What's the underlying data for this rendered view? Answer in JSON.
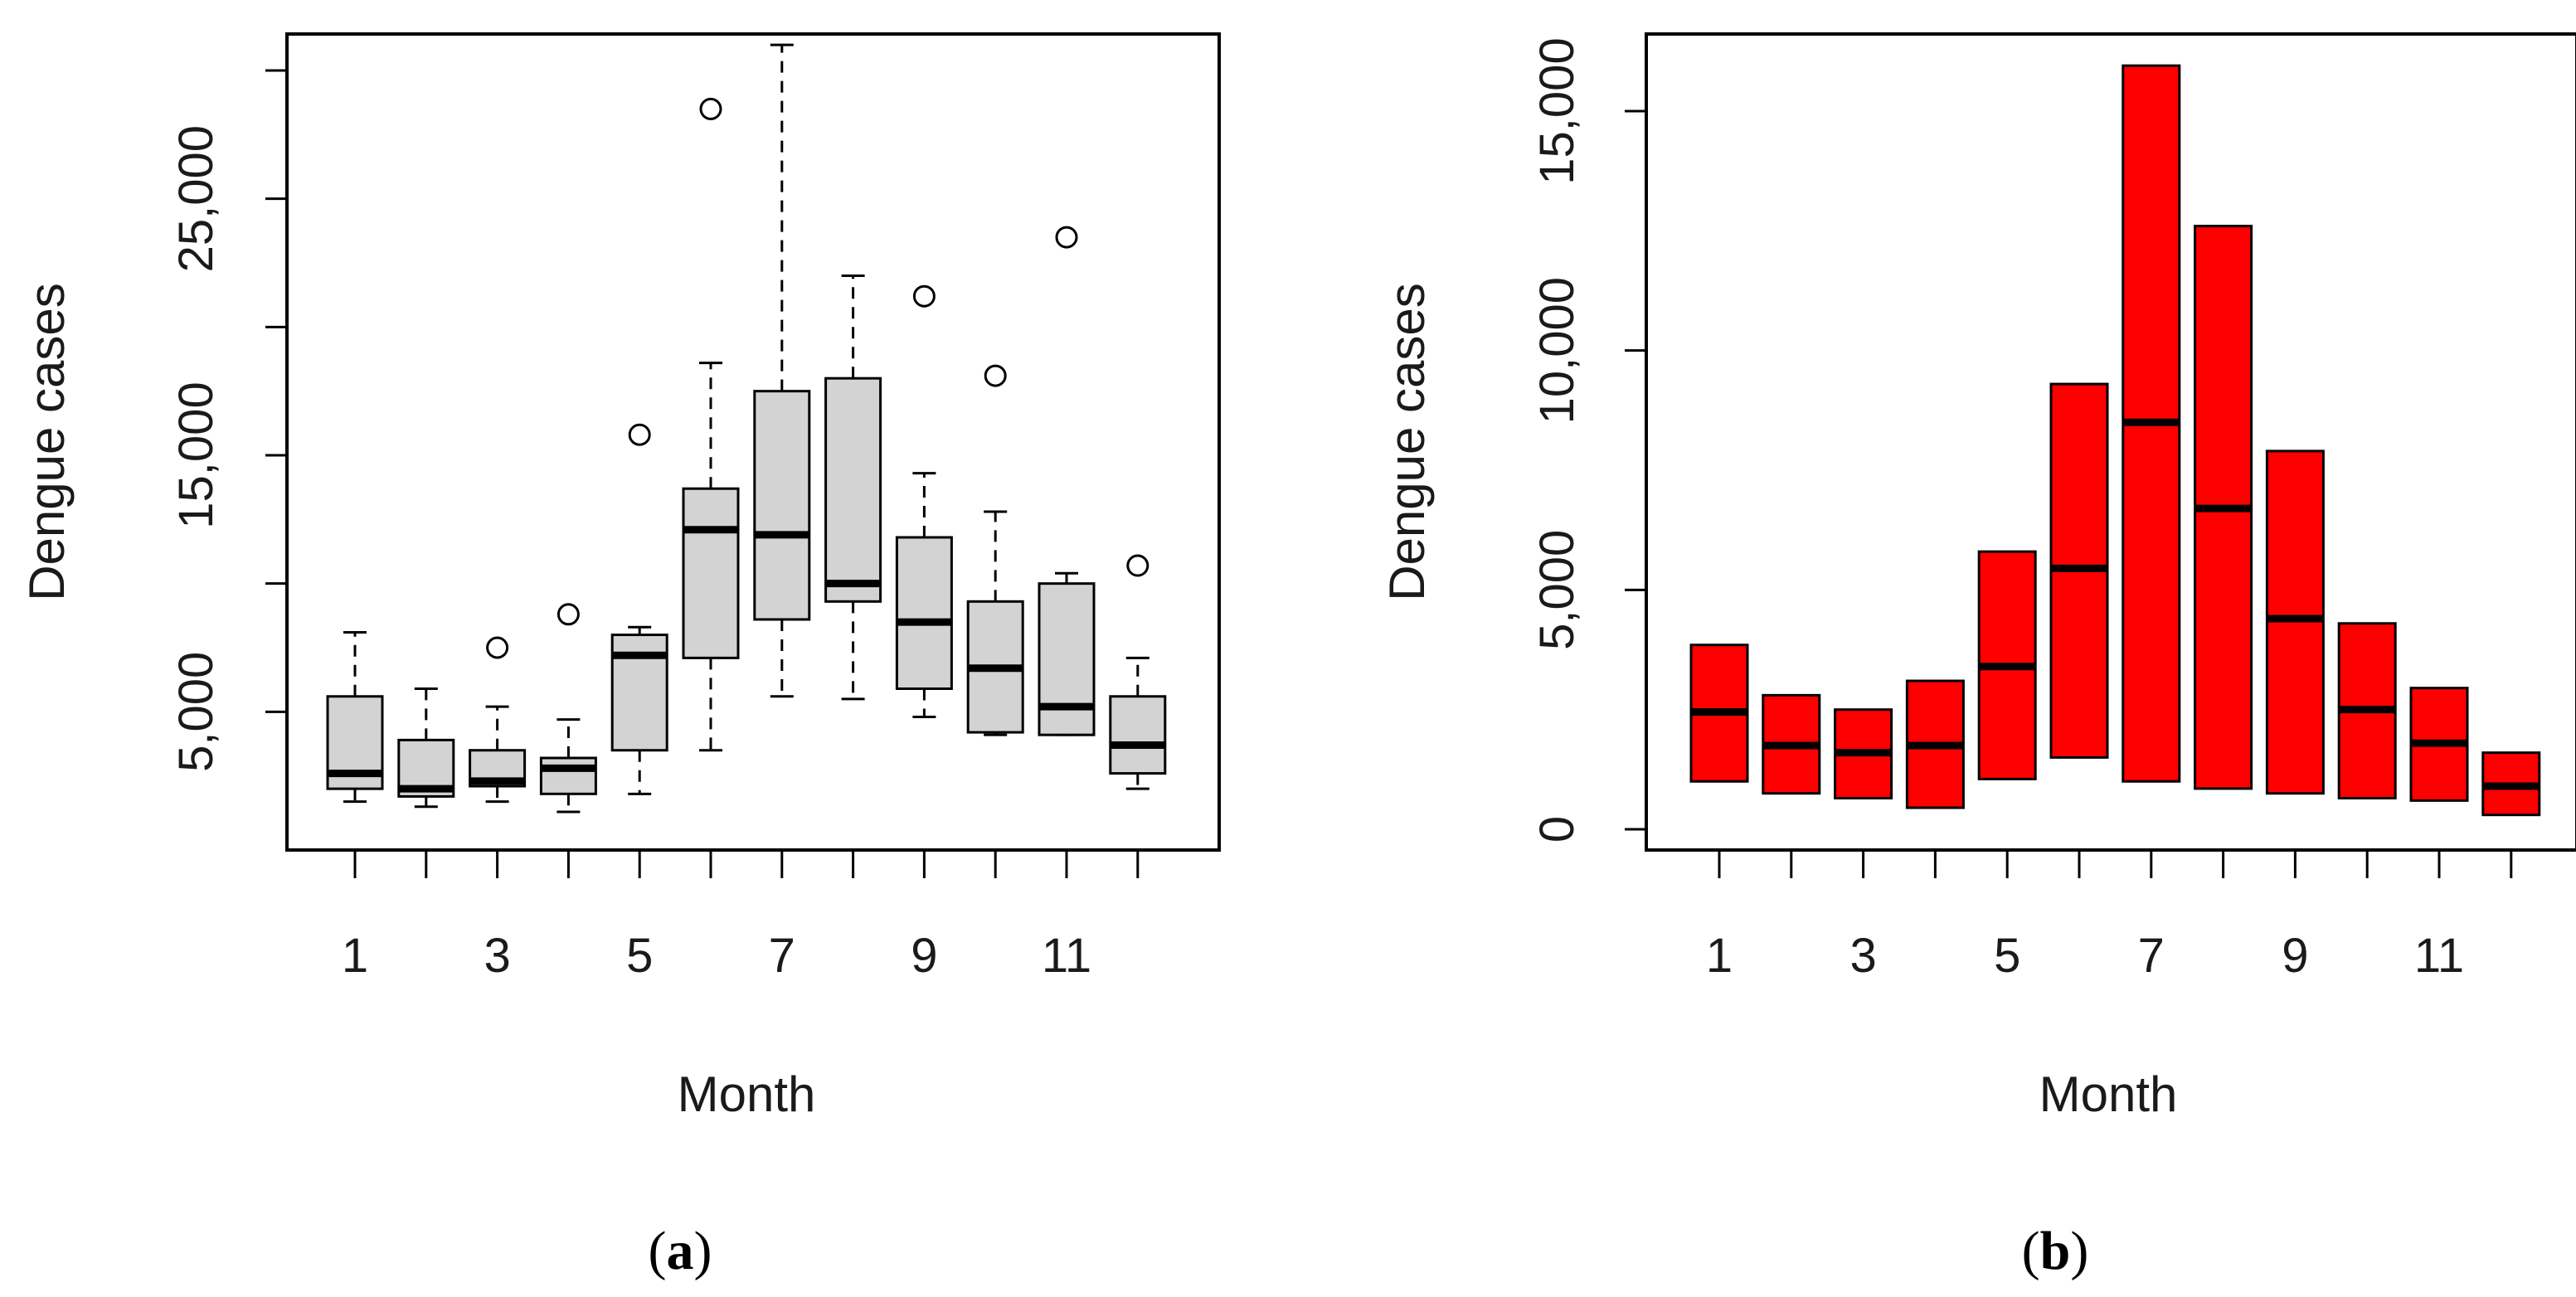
{
  "chart_data": [
    {
      "type": "boxplot",
      "panel_label": "a",
      "xlabel": "Month",
      "ylabel": "Dengue cases",
      "xtick_labels": [
        "1",
        "3",
        "5",
        "7",
        "9",
        "11"
      ],
      "ytick_labels": [
        "5,000",
        "15,000",
        "25,000"
      ],
      "yticks": [
        5000,
        10000,
        15000,
        20000,
        25000,
        30000
      ],
      "xlim": [
        0.5,
        12.5
      ],
      "ylim": [
        0,
        32000
      ],
      "fill_color": "#d3d3d3",
      "series": [
        {
          "month": 1,
          "whisker_low": 1500,
          "q1": 2000,
          "median": 2600,
          "q3": 5600,
          "whisker_high": 8100,
          "outliers": []
        },
        {
          "month": 2,
          "whisker_low": 1300,
          "q1": 1700,
          "median": 2000,
          "q3": 3900,
          "whisker_high": 5900,
          "outliers": []
        },
        {
          "month": 3,
          "whisker_low": 1500,
          "q1": 2100,
          "median": 2300,
          "q3": 3500,
          "whisker_high": 5200,
          "outliers": [
            7500
          ]
        },
        {
          "month": 4,
          "whisker_low": 1100,
          "q1": 1800,
          "median": 2800,
          "q3": 3200,
          "whisker_high": 4700,
          "outliers": [
            8800
          ]
        },
        {
          "month": 5,
          "whisker_low": 1800,
          "q1": 3500,
          "median": 7200,
          "q3": 8000,
          "whisker_high": 8300,
          "outliers": [
            15800
          ]
        },
        {
          "month": 6,
          "whisker_low": 3500,
          "q1": 7100,
          "median": 12100,
          "q3": 13700,
          "whisker_high": 18600,
          "outliers": [
            28500
          ]
        },
        {
          "month": 7,
          "whisker_low": 5600,
          "q1": 8600,
          "median": 11900,
          "q3": 17500,
          "whisker_high": 31000,
          "outliers": []
        },
        {
          "month": 8,
          "whisker_low": 5500,
          "q1": 9300,
          "median": 10000,
          "q3": 18000,
          "whisker_high": 22000,
          "outliers": []
        },
        {
          "month": 9,
          "whisker_low": 4800,
          "q1": 5900,
          "median": 8500,
          "q3": 11800,
          "whisker_high": 14300,
          "outliers": [
            21200
          ]
        },
        {
          "month": 10,
          "whisker_low": 4100,
          "q1": 4200,
          "median": 6700,
          "q3": 9300,
          "whisker_high": 12800,
          "outliers": [
            18100
          ]
        },
        {
          "month": 11,
          "whisker_low": 4100,
          "q1": 4100,
          "median": 5200,
          "q3": 10000,
          "whisker_high": 10400,
          "outliers": [
            23500
          ]
        },
        {
          "month": 12,
          "whisker_low": 2000,
          "q1": 2600,
          "median": 3700,
          "q3": 5600,
          "whisker_high": 7100,
          "outliers": [
            10700
          ]
        }
      ]
    },
    {
      "type": "floating-bar",
      "panel_label": "b",
      "xlabel": "Month",
      "ylabel": "Dengue cases",
      "xtick_labels": [
        "1",
        "3",
        "5",
        "7",
        "9",
        "11"
      ],
      "ytick_labels": [
        "0",
        "5,000",
        "10,000",
        "15,000"
      ],
      "yticks": [
        0,
        5000,
        10000,
        15000
      ],
      "xlim": [
        0.5,
        12.5
      ],
      "ylim": [
        0,
        16500
      ],
      "fill_color": "#ff0000",
      "series": [
        {
          "month": 1,
          "low": 1000,
          "mid": 2450,
          "high": 3850
        },
        {
          "month": 2,
          "low": 750,
          "mid": 1750,
          "high": 2800
        },
        {
          "month": 3,
          "low": 650,
          "mid": 1600,
          "high": 2500
        },
        {
          "month": 4,
          "low": 450,
          "mid": 1750,
          "high": 3100
        },
        {
          "month": 5,
          "low": 1050,
          "mid": 3400,
          "high": 5800
        },
        {
          "month": 6,
          "low": 1500,
          "mid": 5450,
          "high": 9300
        },
        {
          "month": 7,
          "low": 1000,
          "mid": 8500,
          "high": 15950
        },
        {
          "month": 8,
          "low": 850,
          "mid": 6700,
          "high": 12600
        },
        {
          "month": 9,
          "low": 750,
          "mid": 4400,
          "high": 7900
        },
        {
          "month": 10,
          "low": 650,
          "mid": 2500,
          "high": 4300
        },
        {
          "month": 11,
          "low": 600,
          "mid": 1800,
          "high": 2950
        },
        {
          "month": 12,
          "low": 300,
          "mid": 900,
          "high": 1600
        }
      ]
    }
  ]
}
